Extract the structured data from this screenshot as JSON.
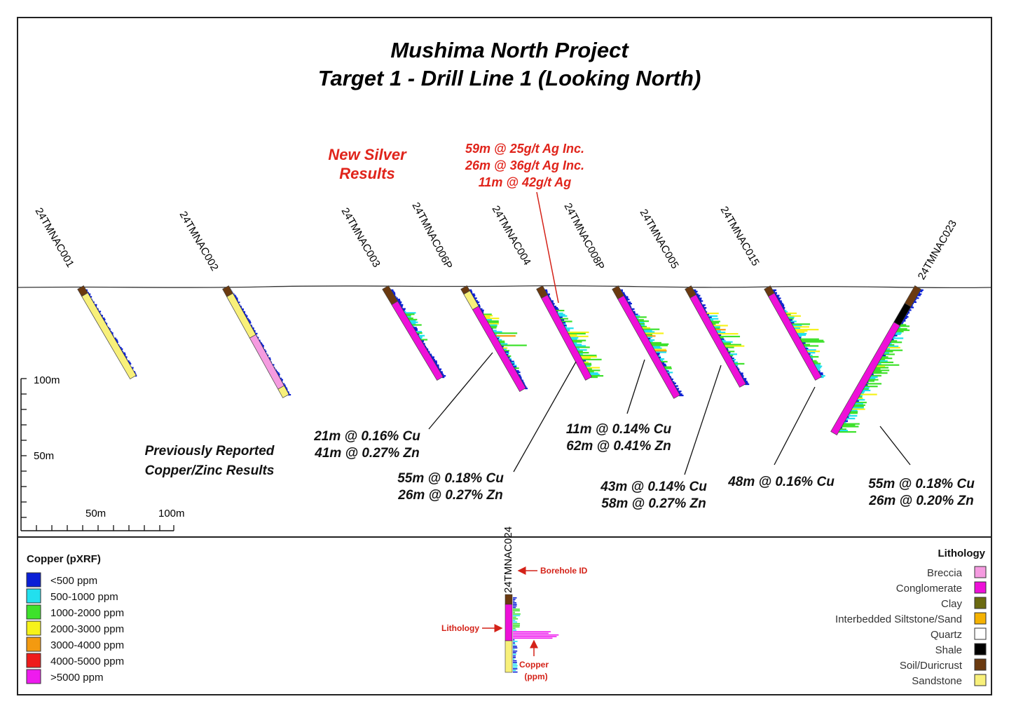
{
  "title_line1": "Mushima North Project",
  "title_line2": "Target 1 - Drill Line 1 (Looking North)",
  "new_silver": {
    "line1": "New Silver",
    "line2": "Results"
  },
  "silver_result": [
    "59m @ 25g/t Ag Inc.",
    "26m @ 36g/t Ag Inc.",
    "11m @ 42g/t Ag"
  ],
  "previously_reported": {
    "line1": "Previously Reported",
    "line2": "Copper/Zinc Results"
  },
  "holes": [
    "24TMNAC001",
    "24TMNAC002",
    "24TMNAC003",
    "24TMNAC006P",
    "24TMNAC004",
    "24TMNAC008P",
    "24TMNAC005",
    "24TMNAC015",
    "24TMNAC023"
  ],
  "intercepts": [
    [
      "21m @ 0.16% Cu",
      "41m @ 0.27% Zn"
    ],
    [
      "55m @ 0.18% Cu",
      "26m @ 0.27% Zn"
    ],
    [
      "11m @ 0.14% Cu",
      "62m @ 0.41% Zn"
    ],
    [
      "43m @ 0.14% Cu",
      "58m @ 0.27% Zn"
    ],
    [
      "48m @ 0.16% Cu"
    ],
    [
      "55m @ 0.18% Cu",
      "26m @ 0.20% Zn"
    ]
  ],
  "scale": {
    "v100": "100m",
    "v50": "50m",
    "h50": "50m",
    "h100": "100m"
  },
  "copper_legend": {
    "title": "Copper (pXRF)",
    "items": [
      {
        "label": "<500 ppm",
        "color": "#0a1fd6"
      },
      {
        "label": "500-1000 ppm",
        "color": "#22e0ee"
      },
      {
        "label": "1000-2000 ppm",
        "color": "#3ee12b"
      },
      {
        "label": "2000-3000 ppm",
        "color": "#f6f21a"
      },
      {
        "label": "3000-4000 ppm",
        "color": "#f39a10"
      },
      {
        "label": "4000-5000 ppm",
        "color": "#ee1b1b"
      },
      {
        "label": ">5000 ppm",
        "color": "#ee1bee"
      }
    ]
  },
  "lithology_legend": {
    "title": "Lithology",
    "items": [
      {
        "label": "Breccia",
        "color": "#f59be0"
      },
      {
        "label": "Conglomerate",
        "color": "#ee10d8"
      },
      {
        "label": "Clay",
        "color": "#6b6a10"
      },
      {
        "label": "Interbedded Siltstone/Sand",
        "color": "#f5b200"
      },
      {
        "label": "Quartz",
        "color": "#ffffff"
      },
      {
        "label": "Shale",
        "color": "#000000"
      },
      {
        "label": "Soil/Duricrust",
        "color": "#6b3a10"
      },
      {
        "label": "Sandstone",
        "color": "#f8f07a"
      }
    ]
  },
  "key_example": {
    "hole": "24TMNAC024",
    "borehole_id": "Borehole ID",
    "lithology": "Lithology",
    "copper1": "Copper",
    "copper2": "(ppm)"
  }
}
